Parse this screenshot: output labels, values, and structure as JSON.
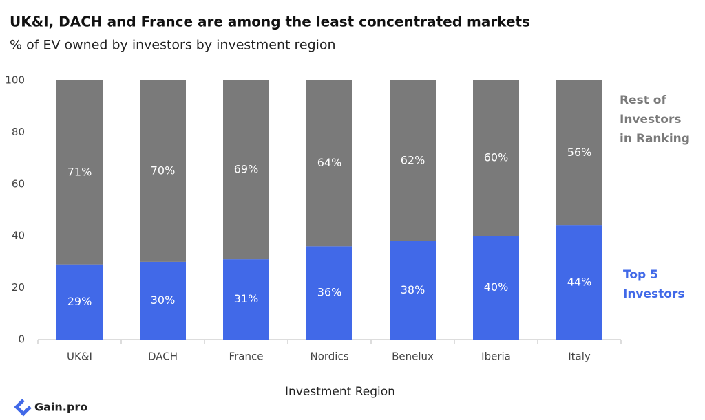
{
  "chart_data": {
    "type": "stacked_bar",
    "title": "UK&I, DACH and France are among the least concentrated markets",
    "subtitle": "% of EV owned by investors by investment region",
    "x_label": "Investment Region",
    "categories": [
      "UK&I",
      "DACH",
      "France",
      "Nordics",
      "Benelux",
      "Iberia",
      "Italy"
    ],
    "series": [
      {
        "name": "Top 5 Investors",
        "color": "#4169e8",
        "values": [
          29,
          30,
          31,
          36,
          38,
          40,
          44
        ],
        "value_labels": [
          "29%",
          "30%",
          "31%",
          "36%",
          "38%",
          "40%",
          "44%"
        ]
      },
      {
        "name": "Rest of Investors in Ranking",
        "color": "#7a7a7a",
        "values": [
          71,
          70,
          69,
          64,
          62,
          60,
          56
        ],
        "value_labels": [
          "71%",
          "70%",
          "69%",
          "64%",
          "62%",
          "60%",
          "56%"
        ]
      }
    ],
    "ylim": [
      0,
      100
    ],
    "yticks": [
      0,
      20,
      40,
      60,
      80,
      100
    ],
    "grid": false,
    "legend": "right"
  },
  "logo": "Gain.pro"
}
